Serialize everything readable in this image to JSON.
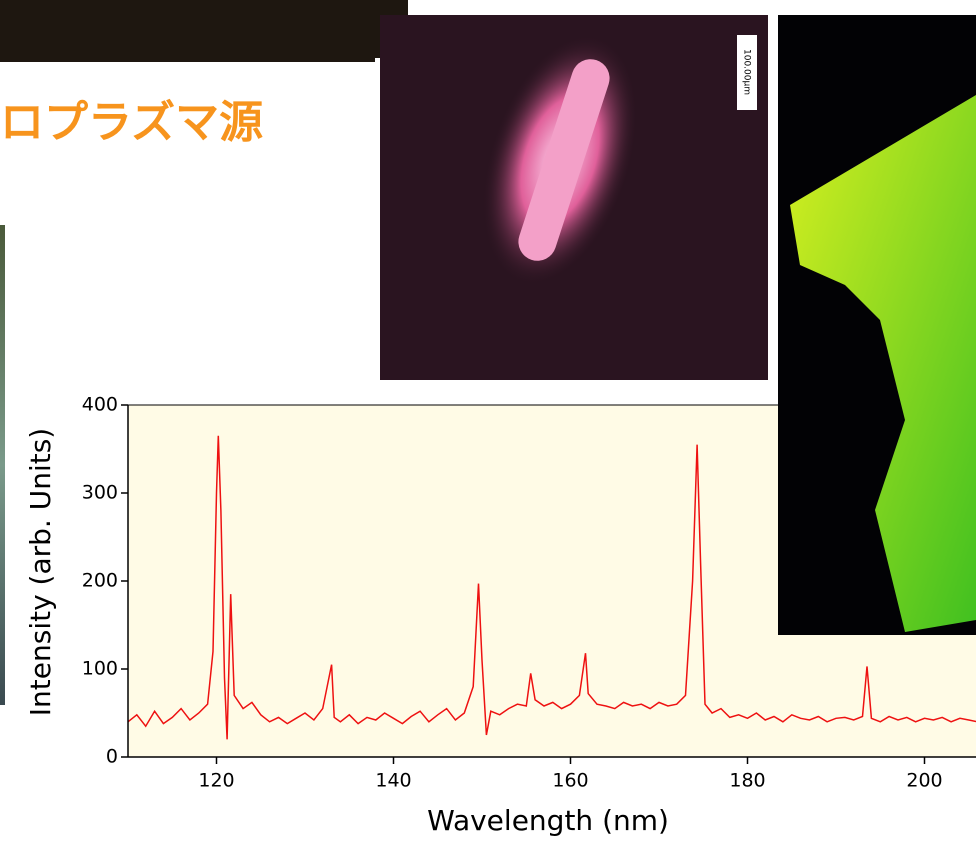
{
  "heading": "ロプラズマ源",
  "scale_label": "100.00μm",
  "chart_data": {
    "type": "line",
    "xlabel": "Wavelength (nm)",
    "ylabel": "Intensity (arb. Units)",
    "color": "#ee1111",
    "xlim": [
      110,
      210
    ],
    "ylim": [
      0,
      400
    ],
    "xticks": [
      120,
      140,
      160,
      180,
      200
    ],
    "yticks": [
      0,
      100,
      200,
      300,
      400
    ],
    "x": [
      110,
      111,
      112,
      113,
      114,
      115,
      116,
      117,
      118,
      119,
      119.6,
      120,
      120.2,
      120.5,
      120.9,
      121.2,
      121.6,
      122,
      123,
      124,
      125,
      126,
      127,
      128,
      129,
      130,
      131,
      132,
      133,
      133.3,
      134,
      135,
      136,
      137,
      138,
      139,
      140,
      141,
      142,
      143,
      144,
      145,
      146,
      147,
      148,
      149,
      149.6,
      150,
      150.5,
      151,
      152,
      153,
      154,
      155,
      155.5,
      156,
      157,
      158,
      159,
      160,
      161,
      161.7,
      162,
      163,
      164,
      165,
      166,
      167,
      168,
      169,
      170,
      171,
      172,
      173,
      173.8,
      174.3,
      174.7,
      175.2,
      176,
      177,
      178,
      179,
      180,
      181,
      182,
      183,
      184,
      185,
      186,
      187,
      188,
      189,
      190,
      191,
      192,
      193,
      193.5,
      194,
      195,
      196,
      197,
      198,
      199,
      200,
      201,
      202,
      203,
      204,
      205,
      206
    ],
    "values": [
      40,
      48,
      35,
      52,
      38,
      45,
      55,
      42,
      50,
      60,
      120,
      300,
      365,
      280,
      90,
      20,
      185,
      70,
      55,
      62,
      48,
      40,
      45,
      38,
      44,
      50,
      42,
      55,
      105,
      45,
      40,
      48,
      38,
      45,
      42,
      50,
      44,
      38,
      46,
      52,
      40,
      48,
      55,
      42,
      50,
      80,
      197,
      110,
      25,
      52,
      48,
      55,
      60,
      58,
      95,
      65,
      58,
      62,
      55,
      60,
      70,
      118,
      72,
      60,
      58,
      55,
      62,
      58,
      60,
      55,
      62,
      58,
      60,
      70,
      200,
      355,
      220,
      60,
      50,
      55,
      45,
      48,
      44,
      50,
      42,
      46,
      40,
      48,
      44,
      42,
      46,
      40,
      44,
      45,
      42,
      46,
      103,
      44,
      40,
      46,
      42,
      45,
      40,
      44,
      42,
      45,
      40,
      44,
      42,
      40
    ]
  }
}
